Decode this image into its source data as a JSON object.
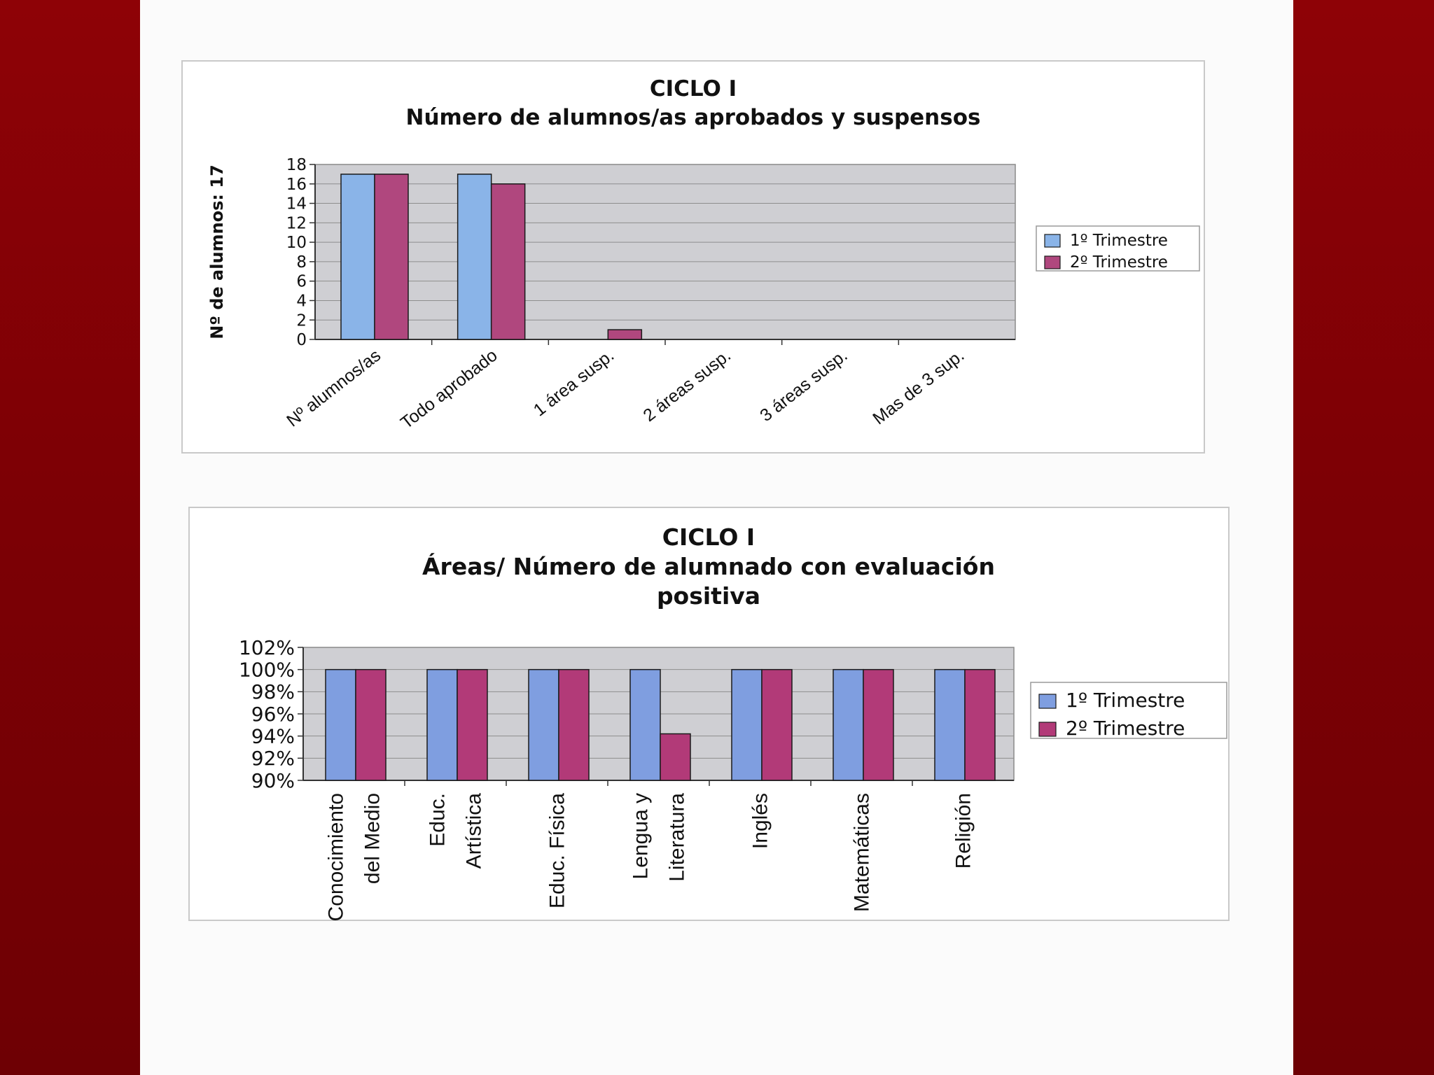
{
  "chart_data": [
    {
      "type": "bar",
      "title_lines": [
        "CICLO I",
        "Número de alumnos/as aprobados y suspensos"
      ],
      "ylabel": "Nº de alumnos: 17",
      "ylim": [
        0,
        18
      ],
      "yticks": [
        "0",
        "2",
        "4",
        "6",
        "8",
        "10",
        "12",
        "14",
        "16",
        "18"
      ],
      "categories": [
        "Nº alumnos/as",
        "Todo aprobado",
        "1 área susp.",
        "2 áreas susp.",
        "3 áreas susp.",
        "Mas de 3 sup."
      ],
      "series": [
        {
          "name": "1º Trimestre",
          "values": [
            17,
            17,
            0,
            0,
            0,
            0
          ],
          "color": "#8ab4e8"
        },
        {
          "name": "2º Trimestre",
          "values": [
            17,
            16,
            1,
            0,
            0,
            0
          ],
          "color": "#b0477e"
        }
      ],
      "grid": true,
      "legend": "right"
    },
    {
      "type": "bar",
      "title_lines": [
        "CICLO I",
        "Áreas/ Número de alumnado con evaluación",
        "positiva"
      ],
      "ylim": [
        90,
        102
      ],
      "yticks": [
        "90%",
        "92%",
        "94%",
        "96%",
        "98%",
        "100%",
        "102%"
      ],
      "categories": [
        [
          "Conocimiento",
          "del Medio"
        ],
        [
          "Educ.",
          "Artística"
        ],
        [
          "Educ. Física"
        ],
        [
          "Lengua y",
          "Literatura"
        ],
        [
          "Inglés"
        ],
        [
          "Matemáticas"
        ],
        [
          "Religión"
        ]
      ],
      "series": [
        {
          "name": "1º Trimestre",
          "values": [
            100,
            100,
            100,
            100,
            100,
            100,
            100
          ],
          "color": "#7f9ee0"
        },
        {
          "name": "2º Trimestre",
          "values": [
            100,
            100,
            100,
            94.2,
            100,
            100,
            100
          ],
          "color": "#b23a78"
        }
      ],
      "grid": true,
      "legend": "right"
    }
  ]
}
